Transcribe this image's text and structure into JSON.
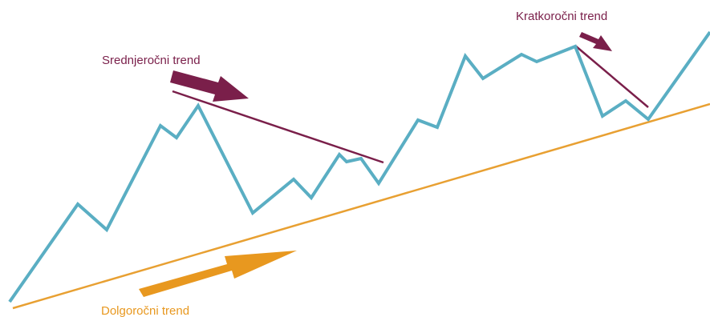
{
  "labels": {
    "medium_term": "Srednjeročni trend",
    "short_term": "Kratkoročni trend",
    "long_term": "Dolgoročni trend"
  },
  "colors": {
    "price_line": "#5aaec3",
    "medium_trend": "#7a1f4a",
    "short_trend": "#7a1f4a",
    "long_trend": "#e8a032",
    "background": "#ffffff"
  }
}
